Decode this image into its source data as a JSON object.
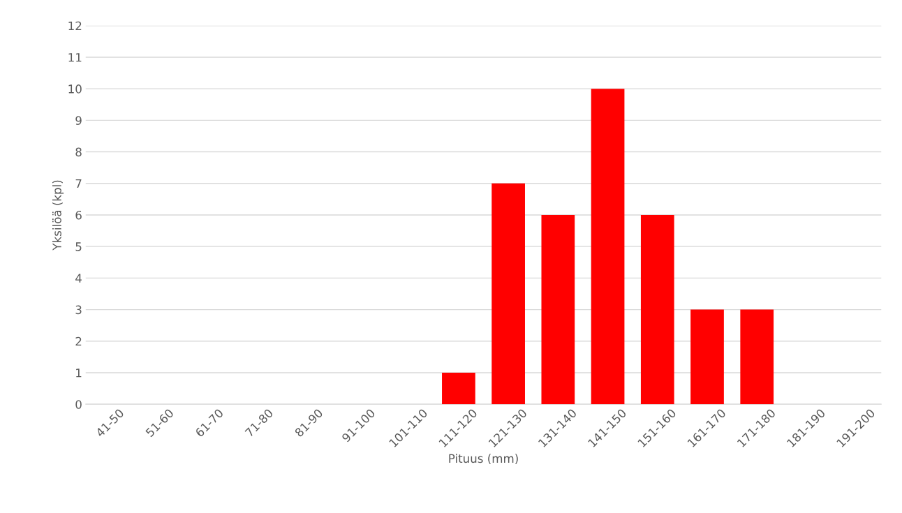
{
  "chart_data": {
    "type": "bar",
    "xlabel": "Pituus (mm)",
    "ylabel": "Yksilöä (kpl)",
    "categories": [
      "41-50",
      "51-60",
      "61-70",
      "71-80",
      "81-90",
      "91-100",
      "101-110",
      "111-120",
      "121-130",
      "131-140",
      "141-150",
      "151-160",
      "161-170",
      "171-180",
      "181-190",
      "191-200"
    ],
    "values": [
      0,
      0,
      0,
      0,
      0,
      0,
      0,
      1,
      7,
      6,
      10,
      6,
      3,
      3,
      0,
      0
    ],
    "color": "#ff0000",
    "ylim": [
      0,
      12
    ],
    "yticks": [
      0,
      1,
      2,
      3,
      4,
      5,
      6,
      7,
      8,
      9,
      10,
      11,
      12
    ],
    "grid": "y"
  }
}
